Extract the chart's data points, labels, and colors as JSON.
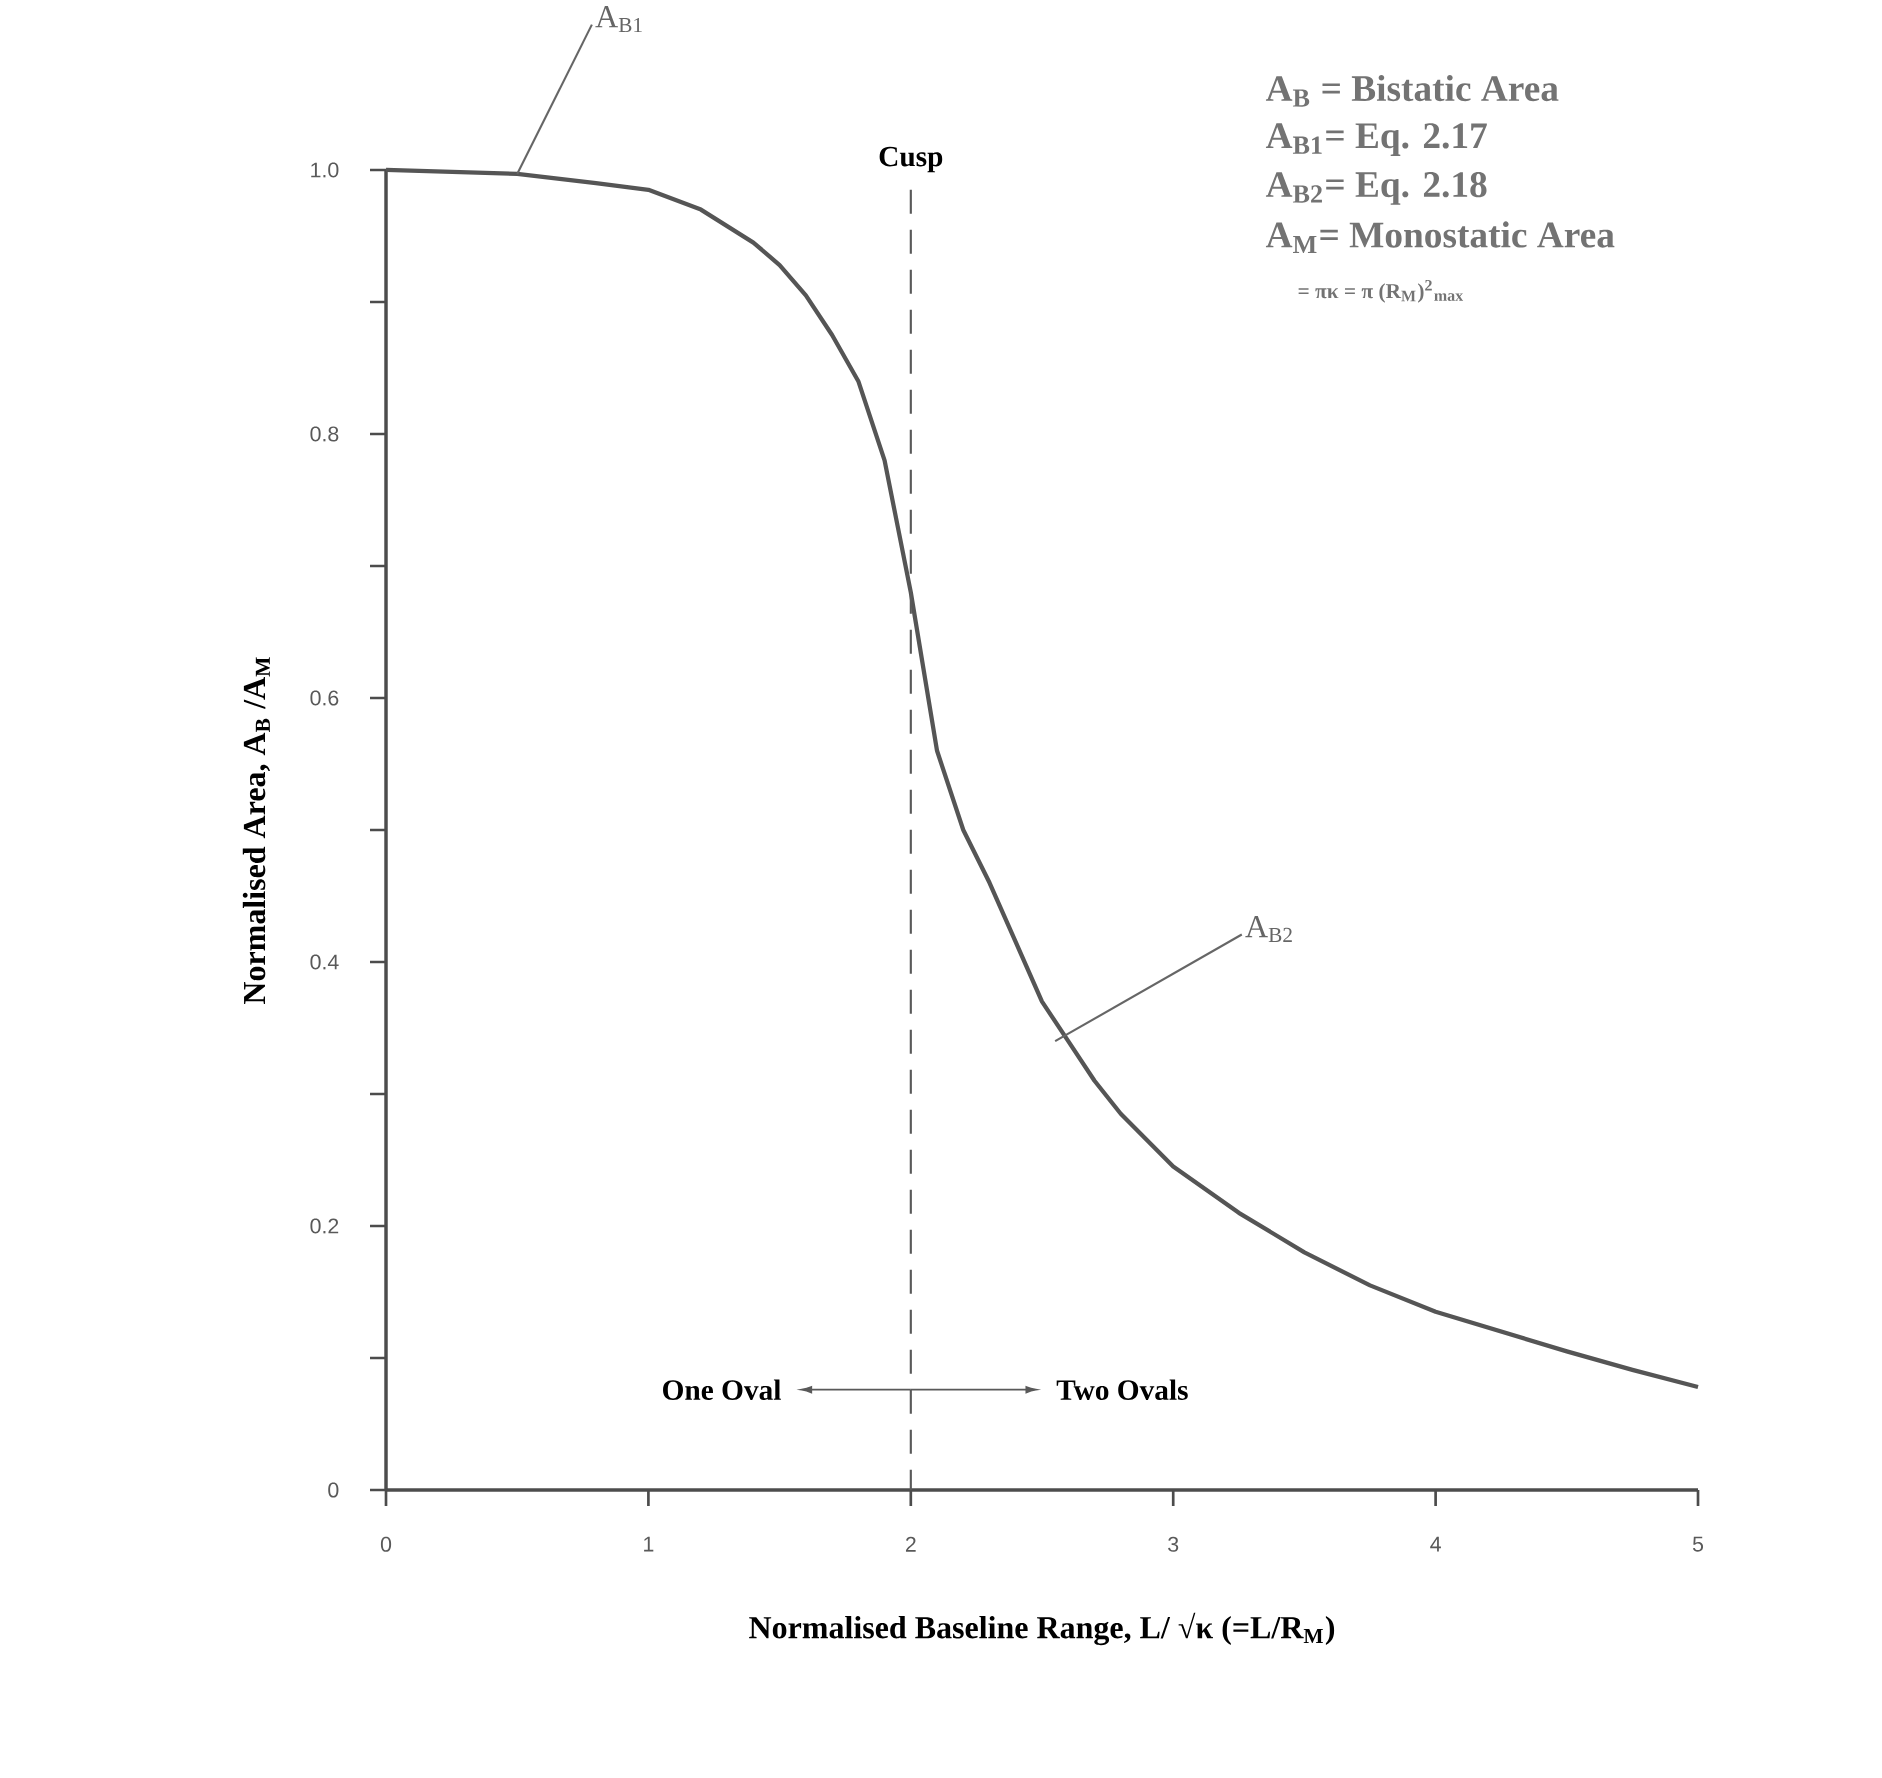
{
  "chart_data": {
    "type": "line",
    "xlabel": "Normalised Baseline Range, L/ √κ  (=L/R$_{M}$)",
    "ylabel": "Normalised Area,  A$_{B}$ /A$_{M}$",
    "x": [
      0,
      0.5,
      0.8,
      1,
      1.2,
      1.4,
      1.5,
      1.6,
      1.7,
      1.8,
      1.9,
      1.95,
      2,
      2.05,
      2.1,
      2.2,
      2.3,
      2.4,
      2.5,
      2.6,
      2.7,
      2.8,
      3,
      3.25,
      3.5,
      3.75,
      4,
      4.25,
      4.5,
      4.75,
      5
    ],
    "series": [
      {
        "color": "#555555",
        "values": [
          1.0,
          0.997,
          0.99,
          0.985,
          0.97,
          0.945,
          0.928,
          0.905,
          0.875,
          0.84,
          0.78,
          0.73,
          0.68,
          0.62,
          0.56,
          0.5,
          0.46,
          0.415,
          0.37,
          0.34,
          0.31,
          0.285,
          0.245,
          0.21,
          0.18,
          0.155,
          0.135,
          0.12,
          0.105,
          0.091,
          0.078
        ]
      }
    ],
    "xlim": [
      0,
      5
    ],
    "ylim": [
      0,
      1
    ],
    "xticks": [
      0,
      1,
      2,
      3,
      4,
      5
    ],
    "yticks": [
      0,
      {
        "value": 0.1,
        "label": null
      },
      0.2,
      {
        "value": 0.3,
        "label": null
      },
      0.4,
      {
        "value": 0.5,
        "label": null
      },
      0.6,
      {
        "value": 0.7,
        "label": null
      },
      0.8,
      {
        "value": 0.9,
        "label": null
      },
      {
        "value": 1,
        "label": "1.0"
      }
    ],
    "ref_lines": [
      {
        "axis": "x",
        "value": 2,
        "label": "Cusp",
        "line_style": "dashed"
      }
    ],
    "annotations": [
      {
        "text": "A$_{B1}$",
        "x": 0.5,
        "y": 0.997
      },
      {
        "text": "A$_{B2}$",
        "x": 2.55,
        "y": 0.34
      },
      "One Oval",
      "Two Ovals",
      "A$_{B}$ = Bistatic Area",
      "A$_{B1}$= Eq.  2.17",
      "A$_{B2}$= Eq.  2.18",
      "A$_{M}$= Monostatic Area",
      "= πκ  = π (R$_{M}$)$^{2}$$_{max}$"
    ],
    "marker": "none",
    "line_style": "solid"
  }
}
